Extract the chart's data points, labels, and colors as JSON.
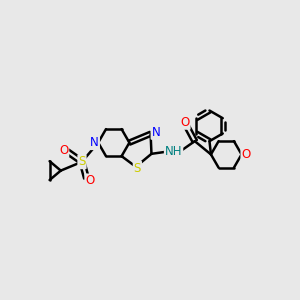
{
  "bg_color": "#e8e8e8",
  "line_color": "#000000",
  "bond_width": 1.8,
  "atom_colors": {
    "N": "#0000ff",
    "S": "#cccc00",
    "O": "#ff0000",
    "NH": "#008080",
    "C": "#000000"
  },
  "figsize": [
    3.0,
    3.0
  ],
  "dpi": 100
}
